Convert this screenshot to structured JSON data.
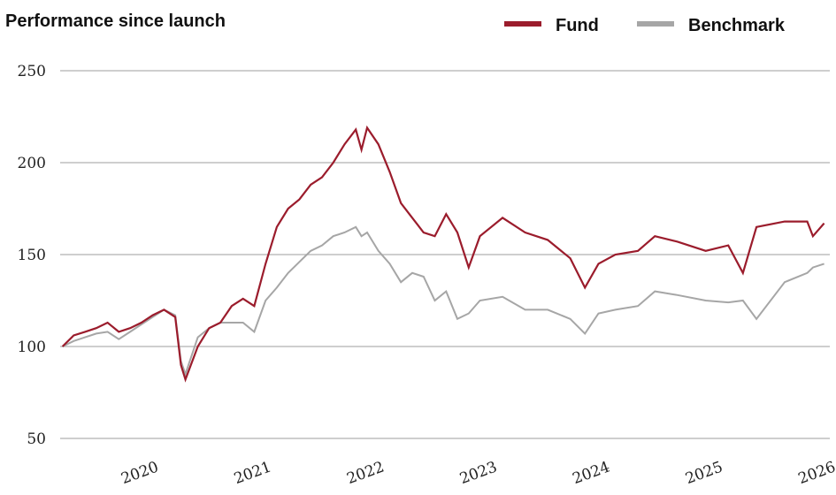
{
  "chart_data": {
    "type": "line",
    "title": "Performance since launch",
    "x": [
      2019.3,
      2019.4,
      2019.5,
      2019.6,
      2019.7,
      2019.8,
      2019.9,
      2020.0,
      2020.1,
      2020.2,
      2020.3,
      2020.35,
      2020.39,
      2020.5,
      2020.6,
      2020.7,
      2020.8,
      2020.9,
      2021.0,
      2021.1,
      2021.2,
      2021.3,
      2021.4,
      2021.5,
      2021.6,
      2021.7,
      2021.8,
      2021.9,
      2021.95,
      2022.0,
      2022.1,
      2022.2,
      2022.3,
      2022.4,
      2022.5,
      2022.6,
      2022.7,
      2022.8,
      2022.9,
      2023.0,
      2023.2,
      2023.4,
      2023.6,
      2023.8,
      2023.93,
      2024.05,
      2024.2,
      2024.4,
      2024.55,
      2024.75,
      2025.0,
      2025.2,
      2025.33,
      2025.45,
      2025.7,
      2025.9,
      2025.95,
      2026.05
    ],
    "series": [
      {
        "name": "Fund",
        "color": "#9b1c2c",
        "values": [
          100,
          106,
          108,
          110,
          113,
          108,
          110,
          113,
          117,
          120,
          116,
          90,
          82,
          100,
          110,
          113,
          122,
          126,
          122,
          145,
          165,
          175,
          180,
          188,
          192,
          200,
          210,
          218,
          207,
          219,
          210,
          195,
          178,
          170,
          162,
          160,
          172,
          162,
          143,
          160,
          170,
          162,
          158,
          148,
          132,
          145,
          150,
          152,
          160,
          157,
          152,
          155,
          140,
          165,
          168,
          168,
          160,
          167
        ]
      },
      {
        "name": "Benchmark",
        "color": "#a6a6a6",
        "values": [
          100,
          103,
          105,
          107,
          108,
          104,
          108,
          112,
          116,
          120,
          117,
          92,
          85,
          105,
          110,
          113,
          113,
          113,
          108,
          125,
          132,
          140,
          146,
          152,
          155,
          160,
          162,
          165,
          160,
          162,
          152,
          145,
          135,
          140,
          138,
          125,
          130,
          115,
          118,
          125,
          127,
          120,
          120,
          115,
          107,
          118,
          120,
          122,
          130,
          128,
          125,
          124,
          125,
          115,
          135,
          140,
          143,
          145
        ]
      }
    ],
    "xlim": [
      2019.28,
      2026.1
    ],
    "xticks": [
      2020,
      2021,
      2022,
      2023,
      2024,
      2025,
      2026
    ],
    "ylim": [
      50,
      250
    ],
    "yticks": [
      50,
      100,
      150,
      200,
      250
    ],
    "grid": true,
    "legend": "top-right"
  }
}
